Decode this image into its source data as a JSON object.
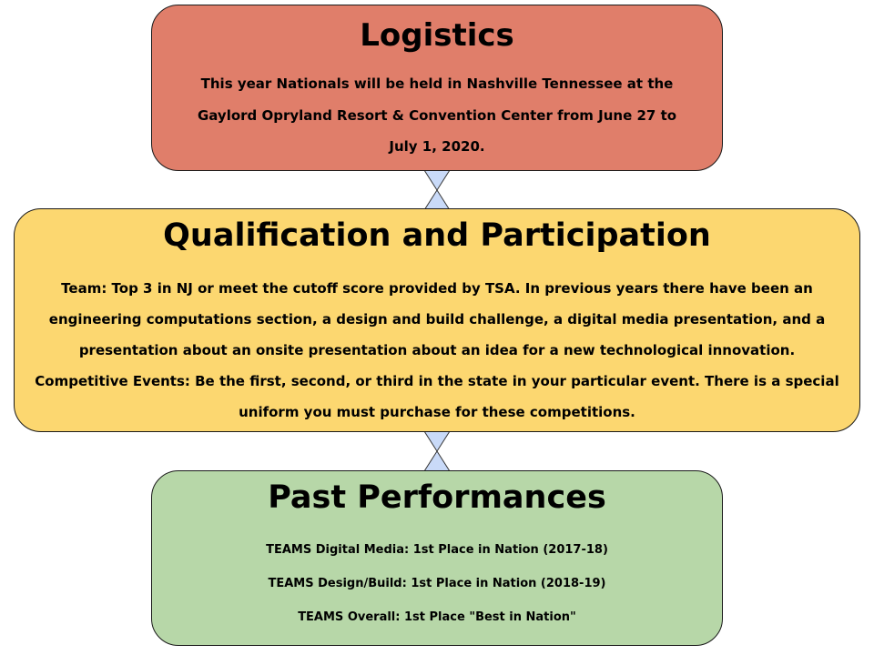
{
  "logistics": {
    "title": "Logistics",
    "text": "This year Nationals will be held in Nashville Tennessee at the Gaylord Opryland Resort & Convention Center from June 27 to July 1, 2020."
  },
  "qualification": {
    "title": "Qualification and Participation",
    "team_text": "Team: Top 3 in NJ or meet the cutoff score provided by TSA. In previous years there have been an engineering computations section, a design and build challenge, a digital media presentation, and a presentation about an onsite presentation about an idea for a new technological innovation.",
    "events_text": "Competitive Events: Be the first, second, or third in the state in your particular event. There is a special uniform you must purchase for these competitions."
  },
  "past": {
    "title": "Past Performances",
    "items": [
      "TEAMS Digital Media: 1st Place in Nation (2017-18)",
      "TEAMS Design/Build: 1st Place in Nation (2018-19)",
      "TEAMS Overall: 1st Place \"Best in Nation\""
    ]
  },
  "colors": {
    "logistics_fill": "#e07e6a",
    "qualification_fill": "#fcd770",
    "past_fill": "#b7d7a8",
    "connector_fill": "#c9daf8"
  }
}
